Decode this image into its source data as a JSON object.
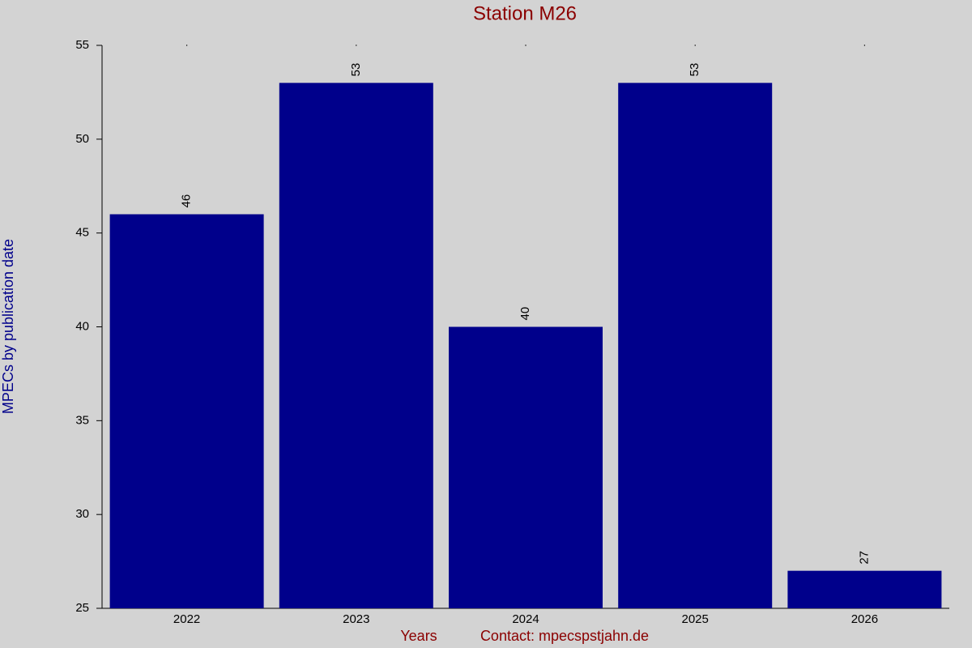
{
  "chart_data": {
    "type": "bar",
    "title": "Station M26",
    "y_label": "MPECs by publication date",
    "x_label": "Years",
    "footer": "Contact: mpecspstjahn.de",
    "categories": [
      "2022",
      "2023",
      "2024",
      "2025",
      "2026"
    ],
    "values": [
      46,
      53,
      40,
      53,
      27
    ],
    "color": "#00008b",
    "ylim": [
      25,
      55
    ],
    "yticks": [
      25,
      30,
      35,
      40,
      45,
      50,
      55
    ],
    "value_labels_shown": true
  }
}
